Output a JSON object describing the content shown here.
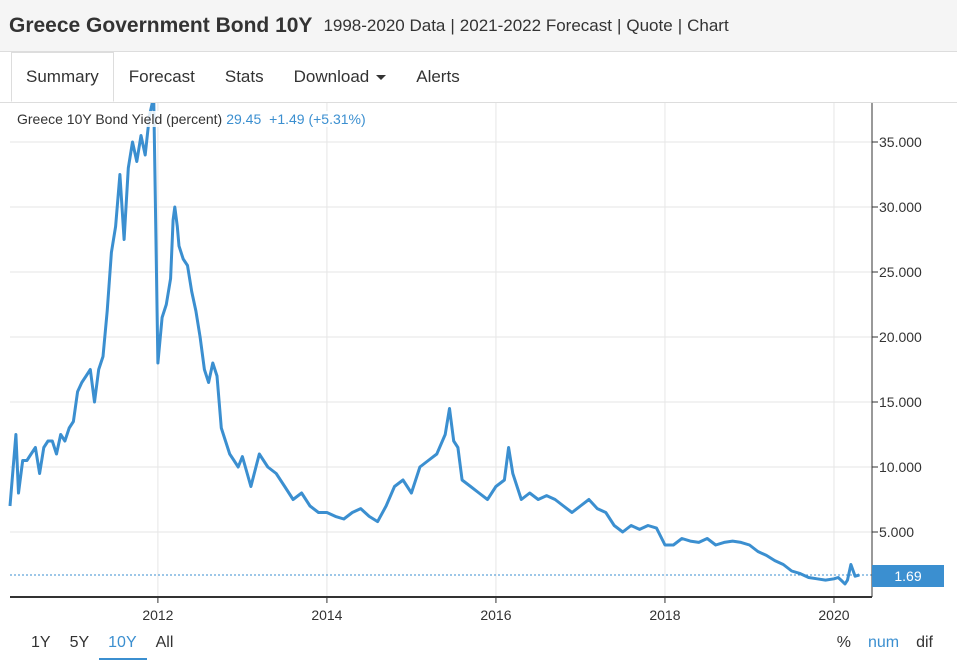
{
  "header": {
    "title": "Greece Government Bond 10Y",
    "links": [
      "1998-2020 Data",
      "2021-2022 Forecast",
      "Quote",
      "Chart"
    ]
  },
  "tabs": [
    {
      "label": "Summary",
      "active": true
    },
    {
      "label": "Forecast",
      "active": false
    },
    {
      "label": "Stats",
      "active": false
    },
    {
      "label": "Download",
      "active": false,
      "dropdown": true
    },
    {
      "label": "Alerts",
      "active": false
    }
  ],
  "legend": {
    "name": "Greece 10Y Bond Yield (percent)",
    "value": "29.45",
    "change": "+1.49 (+5.31%)"
  },
  "last_value_label": "1.69",
  "range_buttons": [
    {
      "label": "1Y",
      "active": false
    },
    {
      "label": "5Y",
      "active": false
    },
    {
      "label": "10Y",
      "active": true
    },
    {
      "label": "All",
      "active": false
    }
  ],
  "mode_buttons": [
    {
      "label": "%",
      "active": false
    },
    {
      "label": "num",
      "active": true
    },
    {
      "label": "dif",
      "active": false
    }
  ],
  "colors": {
    "line": "#3b8fd0",
    "grid": "#e6e6e6",
    "axis": "#333333"
  },
  "chart_data": {
    "type": "line",
    "title": "Greece 10Y Bond Yield (percent)",
    "xlabel": "",
    "ylabel": "",
    "xlim": [
      2010.25,
      2020.45
    ],
    "ylim": [
      0,
      38
    ],
    "x_ticks": [
      2012,
      2014,
      2016,
      2018,
      2020
    ],
    "y_ticks": [
      5,
      10,
      15,
      20,
      25,
      30,
      35
    ],
    "y_tick_labels": [
      "5.000",
      "10.000",
      "15.000",
      "20.000",
      "25.000",
      "30.000",
      "35.000"
    ],
    "y_axis_side": "right",
    "grid": true,
    "last_value": 1.69,
    "series": [
      {
        "x": [
          2010.25,
          2010.32,
          2010.35,
          2010.38,
          2010.4,
          2010.45,
          2010.5,
          2010.55,
          2010.6,
          2010.65,
          2010.7,
          2010.75,
          2010.8,
          2010.85,
          2010.9,
          2010.95,
          2011.0,
          2011.05,
          2011.1,
          2011.15,
          2011.2,
          2011.25,
          2011.3,
          2011.35,
          2011.4,
          2011.45,
          2011.5,
          2011.55,
          2011.6,
          2011.65,
          2011.7,
          2011.75,
          2011.8,
          2011.85,
          2011.9,
          2011.95,
          2012.0,
          2012.05,
          2012.1,
          2012.15,
          2012.18,
          2012.2,
          2012.23,
          2012.25,
          2012.3,
          2012.35,
          2012.4,
          2012.45,
          2012.5,
          2012.55,
          2012.6,
          2012.65,
          2012.7,
          2012.75,
          2012.8,
          2012.85,
          2012.9,
          2012.95,
          2013.0,
          2013.1,
          2013.2,
          2013.3,
          2013.4,
          2013.5,
          2013.6,
          2013.7,
          2013.8,
          2013.9,
          2014.0,
          2014.1,
          2014.2,
          2014.3,
          2014.4,
          2014.5,
          2014.6,
          2014.7,
          2014.8,
          2014.9,
          2015.0,
          2015.1,
          2015.2,
          2015.3,
          2015.4,
          2015.45,
          2015.5,
          2015.55,
          2015.6,
          2015.7,
          2015.8,
          2015.9,
          2016.0,
          2016.1,
          2016.15,
          2016.2,
          2016.3,
          2016.4,
          2016.5,
          2016.6,
          2016.7,
          2016.8,
          2016.9,
          2017.0,
          2017.1,
          2017.2,
          2017.3,
          2017.4,
          2017.5,
          2017.6,
          2017.7,
          2017.8,
          2017.9,
          2018.0,
          2018.1,
          2018.2,
          2018.3,
          2018.4,
          2018.5,
          2018.6,
          2018.7,
          2018.8,
          2018.9,
          2019.0,
          2019.1,
          2019.2,
          2019.3,
          2019.4,
          2019.5,
          2019.6,
          2019.7,
          2019.8,
          2019.9,
          2020.0,
          2020.05,
          2020.1,
          2020.13,
          2020.16,
          2020.2,
          2020.25,
          2020.3
        ],
        "y": [
          7.0,
          12.5,
          8.0,
          9.5,
          10.5,
          10.5,
          11.0,
          11.5,
          9.5,
          11.5,
          12.0,
          12.0,
          11.0,
          12.5,
          12.0,
          13.0,
          13.5,
          15.8,
          16.5,
          17.0,
          17.5,
          15.0,
          17.5,
          18.5,
          22.0,
          26.5,
          28.5,
          32.5,
          27.5,
          33.0,
          35.0,
          33.5,
          35.5,
          34.0,
          37.0,
          38.5,
          18.0,
          21.5,
          22.5,
          24.5,
          29.0,
          30.0,
          28.5,
          27.0,
          26.0,
          25.5,
          23.5,
          22.0,
          20.0,
          17.5,
          16.5,
          18.0,
          17.0,
          13.0,
          12.0,
          11.0,
          10.5,
          10.0,
          10.8,
          8.5,
          11.0,
          10.0,
          9.5,
          8.5,
          7.5,
          8.0,
          7.0,
          6.5,
          6.5,
          6.2,
          6.0,
          6.5,
          6.8,
          6.2,
          5.8,
          7.0,
          8.5,
          9.0,
          8.0,
          10.0,
          10.5,
          11.0,
          12.5,
          14.5,
          12.0,
          11.5,
          9.0,
          8.5,
          8.0,
          7.5,
          8.5,
          9.0,
          11.5,
          9.5,
          7.5,
          8.0,
          7.5,
          7.8,
          7.5,
          7.0,
          6.5,
          7.0,
          7.5,
          6.8,
          6.5,
          5.5,
          5.0,
          5.5,
          5.2,
          5.5,
          5.3,
          4.0,
          4.0,
          4.5,
          4.3,
          4.2,
          4.5,
          4.0,
          4.2,
          4.3,
          4.2,
          4.0,
          3.5,
          3.2,
          2.8,
          2.5,
          2.0,
          1.8,
          1.5,
          1.4,
          1.3,
          1.4,
          1.5,
          1.2,
          1.0,
          1.3,
          2.5,
          1.6,
          1.69
        ]
      }
    ]
  }
}
